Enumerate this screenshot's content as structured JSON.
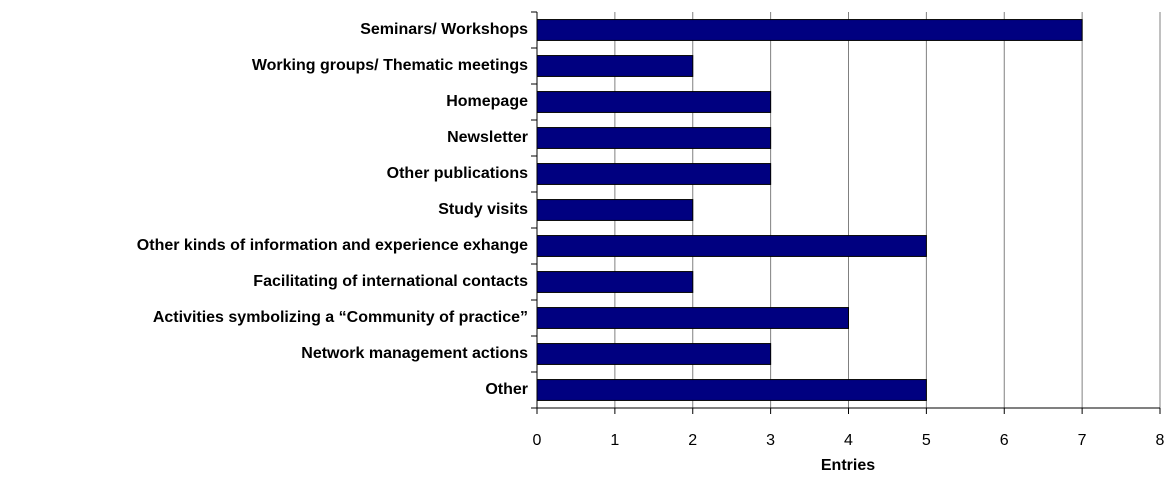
{
  "chart_data": {
    "type": "bar",
    "orientation": "horizontal",
    "categories": [
      "Seminars/ Workshops",
      "Working groups/ Thematic meetings",
      "Homepage",
      "Newsletter",
      "Other publications",
      "Study visits",
      "Other kinds of information and experience exhange",
      "Facilitating of international contacts",
      "Activities symbolizing a “Community of practice”",
      "Network management actions",
      "Other"
    ],
    "values": [
      7,
      2,
      3,
      3,
      3,
      2,
      5,
      2,
      4,
      3,
      5
    ],
    "color": "#000080",
    "x_label": "Entries",
    "xlim": [
      0,
      8
    ],
    "xticks": [
      0,
      1,
      2,
      3,
      4,
      5,
      6,
      7,
      8
    ],
    "grid": true
  }
}
